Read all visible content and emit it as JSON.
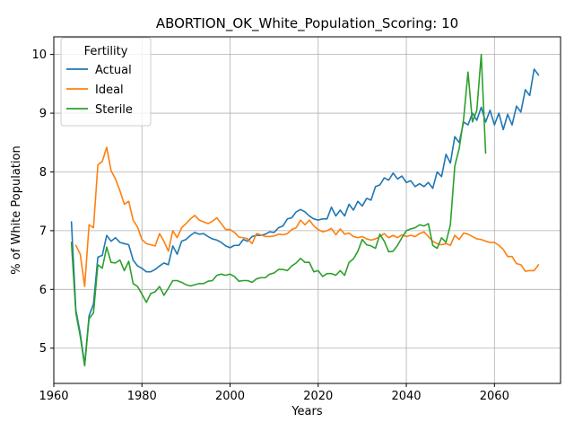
{
  "chart_data": {
    "type": "line",
    "title": "ABORTION_OK_White_Population_Scoring: 10",
    "xlabel": "Years",
    "ylabel": "% of White Population",
    "xlim": [
      1960,
      2075
    ],
    "ylim": [
      4.4,
      10.3
    ],
    "xticks": [
      1960,
      1980,
      2000,
      2020,
      2040,
      2060
    ],
    "yticks": [
      5,
      6,
      7,
      8,
      9,
      10
    ],
    "grid": true,
    "legend": {
      "title": "Fertility",
      "placement": "top-left",
      "entries": [
        "Actual",
        "Ideal",
        "Sterile"
      ]
    },
    "series": [
      {
        "name": "Actual",
        "color": "#1f77b4",
        "x": [
          1964,
          1965,
          1966,
          1967,
          1968,
          1969,
          1970,
          1971,
          1972,
          1973,
          1974,
          1975,
          1976,
          1977,
          1978,
          1979,
          1980,
          1981,
          1982,
          1983,
          1984,
          1985,
          1986,
          1987,
          1988,
          1989,
          1990,
          1991,
          1992,
          1993,
          1994,
          1995,
          1996,
          1997,
          1998,
          1999,
          2000,
          2001,
          2002,
          2003,
          2004,
          2005,
          2006,
          2007,
          2008,
          2009,
          2010,
          2011,
          2012,
          2013,
          2014,
          2015,
          2016,
          2017,
          2018,
          2019,
          2020,
          2021,
          2022,
          2023,
          2024,
          2025,
          2026,
          2027,
          2028,
          2029,
          2030,
          2031,
          2032,
          2033,
          2034,
          2035,
          2036,
          2037,
          2038,
          2039,
          2040,
          2041,
          2042,
          2043,
          2044,
          2045,
          2046,
          2047,
          2048,
          2049,
          2050,
          2051,
          2052,
          2053,
          2054,
          2055,
          2056,
          2057,
          2058,
          2059,
          2060,
          2061,
          2062,
          2063,
          2064,
          2065,
          2066,
          2067,
          2068,
          2069,
          2070
        ],
        "values": [
          7.15,
          5.65,
          5.25,
          4.72,
          5.55,
          5.75,
          6.55,
          6.58,
          6.92,
          6.82,
          6.88,
          6.8,
          6.78,
          6.76,
          6.5,
          6.4,
          6.36,
          6.3,
          6.3,
          6.34,
          6.4,
          6.45,
          6.42,
          6.74,
          6.6,
          6.82,
          6.85,
          6.92,
          6.97,
          6.94,
          6.95,
          6.9,
          6.86,
          6.84,
          6.8,
          6.74,
          6.71,
          6.75,
          6.75,
          6.85,
          6.82,
          6.9,
          6.92,
          6.92,
          6.94,
          6.98,
          6.97,
          7.05,
          7.08,
          7.2,
          7.22,
          7.32,
          7.36,
          7.32,
          7.25,
          7.2,
          7.18,
          7.2,
          7.2,
          7.4,
          7.25,
          7.35,
          7.25,
          7.45,
          7.35,
          7.5,
          7.42,
          7.55,
          7.52,
          7.75,
          7.78,
          7.9,
          7.86,
          7.98,
          7.88,
          7.93,
          7.82,
          7.85,
          7.75,
          7.8,
          7.75,
          7.82,
          7.72,
          8.0,
          7.92,
          8.3,
          8.15,
          8.6,
          8.5,
          8.85,
          8.8,
          9.0,
          8.88,
          9.1,
          8.85,
          9.05,
          8.8,
          9.0,
          8.72,
          8.98,
          8.8,
          9.12,
          9.02,
          9.4,
          9.3,
          9.75,
          9.65
        ]
      },
      {
        "name": "Ideal",
        "color": "#ff7f0e",
        "x": [
          1965,
          1966,
          1967,
          1968,
          1969,
          1970,
          1971,
          1972,
          1973,
          1974,
          1975,
          1976,
          1977,
          1978,
          1979,
          1980,
          1981,
          1982,
          1983,
          1984,
          1985,
          1986,
          1987,
          1988,
          1989,
          1990,
          1991,
          1992,
          1993,
          1994,
          1995,
          1996,
          1997,
          1998,
          1999,
          2000,
          2001,
          2002,
          2003,
          2004,
          2005,
          2006,
          2007,
          2008,
          2009,
          2010,
          2011,
          2012,
          2013,
          2014,
          2015,
          2016,
          2017,
          2018,
          2019,
          2020,
          2021,
          2022,
          2023,
          2024,
          2025,
          2026,
          2027,
          2028,
          2029,
          2030,
          2031,
          2032,
          2033,
          2034,
          2035,
          2036,
          2037,
          2038,
          2039,
          2040,
          2041,
          2042,
          2043,
          2044,
          2045,
          2046,
          2047,
          2048,
          2049,
          2050,
          2051,
          2052,
          2053,
          2054,
          2055,
          2056,
          2057,
          2058,
          2059,
          2060,
          2061,
          2062,
          2063,
          2064,
          2065,
          2066,
          2067,
          2068,
          2069,
          2070
        ],
        "values": [
          6.75,
          6.6,
          6.05,
          7.1,
          7.05,
          8.12,
          8.18,
          8.42,
          8.02,
          7.88,
          7.68,
          7.45,
          7.5,
          7.18,
          7.06,
          6.85,
          6.78,
          6.76,
          6.74,
          6.95,
          6.82,
          6.65,
          7.0,
          6.88,
          7.05,
          7.12,
          7.2,
          7.26,
          7.18,
          7.15,
          7.12,
          7.16,
          7.22,
          7.12,
          7.02,
          7.02,
          6.97,
          6.89,
          6.88,
          6.86,
          6.78,
          6.95,
          6.93,
          6.9,
          6.9,
          6.91,
          6.94,
          6.93,
          6.95,
          7.02,
          7.05,
          7.18,
          7.1,
          7.18,
          7.08,
          7.02,
          6.98,
          7.0,
          7.04,
          6.93,
          7.03,
          6.94,
          6.96,
          6.9,
          6.88,
          6.9,
          6.86,
          6.84,
          6.86,
          6.9,
          6.95,
          6.88,
          6.92,
          6.88,
          6.93,
          6.9,
          6.92,
          6.9,
          6.95,
          6.98,
          6.9,
          6.82,
          6.78,
          6.76,
          6.78,
          6.75,
          6.92,
          6.85,
          6.96,
          6.94,
          6.9,
          6.86,
          6.85,
          6.82,
          6.8,
          6.8,
          6.75,
          6.68,
          6.56,
          6.56,
          6.44,
          6.42,
          6.31,
          6.32,
          6.32,
          6.42
        ]
      },
      {
        "name": "Sterile",
        "color": "#2ca02c",
        "x": [
          1964,
          1965,
          1966,
          1967,
          1968,
          1969,
          1970,
          1971,
          1972,
          1973,
          1974,
          1975,
          1976,
          1977,
          1978,
          1979,
          1980,
          1981,
          1982,
          1983,
          1984,
          1985,
          1986,
          1987,
          1988,
          1989,
          1990,
          1991,
          1992,
          1993,
          1994,
          1995,
          1996,
          1997,
          1998,
          1999,
          2000,
          2001,
          2002,
          2003,
          2004,
          2005,
          2006,
          2007,
          2008,
          2009,
          2010,
          2011,
          2012,
          2013,
          2014,
          2015,
          2016,
          2017,
          2018,
          2019,
          2020,
          2021,
          2022,
          2023,
          2024,
          2025,
          2026,
          2027,
          2028,
          2029,
          2030,
          2031,
          2032,
          2033,
          2034,
          2035,
          2036,
          2037,
          2038,
          2039,
          2040,
          2041,
          2042,
          2043,
          2044,
          2045,
          2046,
          2047,
          2048,
          2049,
          2050,
          2051,
          2052,
          2053,
          2054,
          2055,
          2056,
          2057,
          2058
        ],
        "values": [
          6.8,
          5.6,
          5.2,
          4.7,
          5.5,
          5.6,
          6.42,
          6.36,
          6.72,
          6.46,
          6.45,
          6.5,
          6.32,
          6.48,
          6.1,
          6.05,
          5.92,
          5.78,
          5.93,
          5.96,
          6.05,
          5.9,
          6.02,
          6.15,
          6.15,
          6.12,
          6.08,
          6.06,
          6.08,
          6.1,
          6.1,
          6.14,
          6.15,
          6.24,
          6.26,
          6.24,
          6.26,
          6.22,
          6.14,
          6.15,
          6.15,
          6.12,
          6.18,
          6.2,
          6.2,
          6.26,
          6.28,
          6.34,
          6.34,
          6.32,
          6.4,
          6.45,
          6.53,
          6.46,
          6.46,
          6.3,
          6.32,
          6.22,
          6.27,
          6.27,
          6.24,
          6.32,
          6.24,
          6.46,
          6.52,
          6.65,
          6.85,
          6.76,
          6.74,
          6.7,
          6.94,
          6.82,
          6.64,
          6.65,
          6.75,
          6.88,
          7.0,
          7.03,
          7.05,
          7.1,
          7.08,
          7.12,
          6.75,
          6.7,
          6.88,
          6.8,
          7.1,
          8.1,
          8.4,
          8.9,
          9.7,
          8.85,
          9.05,
          10.0,
          8.32
        ]
      }
    ]
  }
}
